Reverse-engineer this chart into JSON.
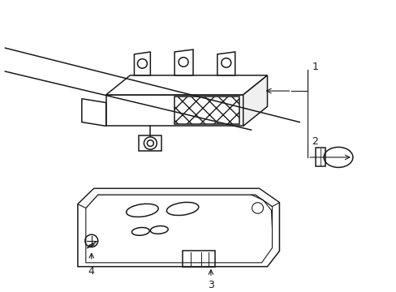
{
  "bg_color": "#ffffff",
  "line_color": "#1a1a1a",
  "figsize": [
    4.89,
    3.6
  ],
  "dpi": 100,
  "parts": [
    "1",
    "2",
    "3",
    "4"
  ]
}
